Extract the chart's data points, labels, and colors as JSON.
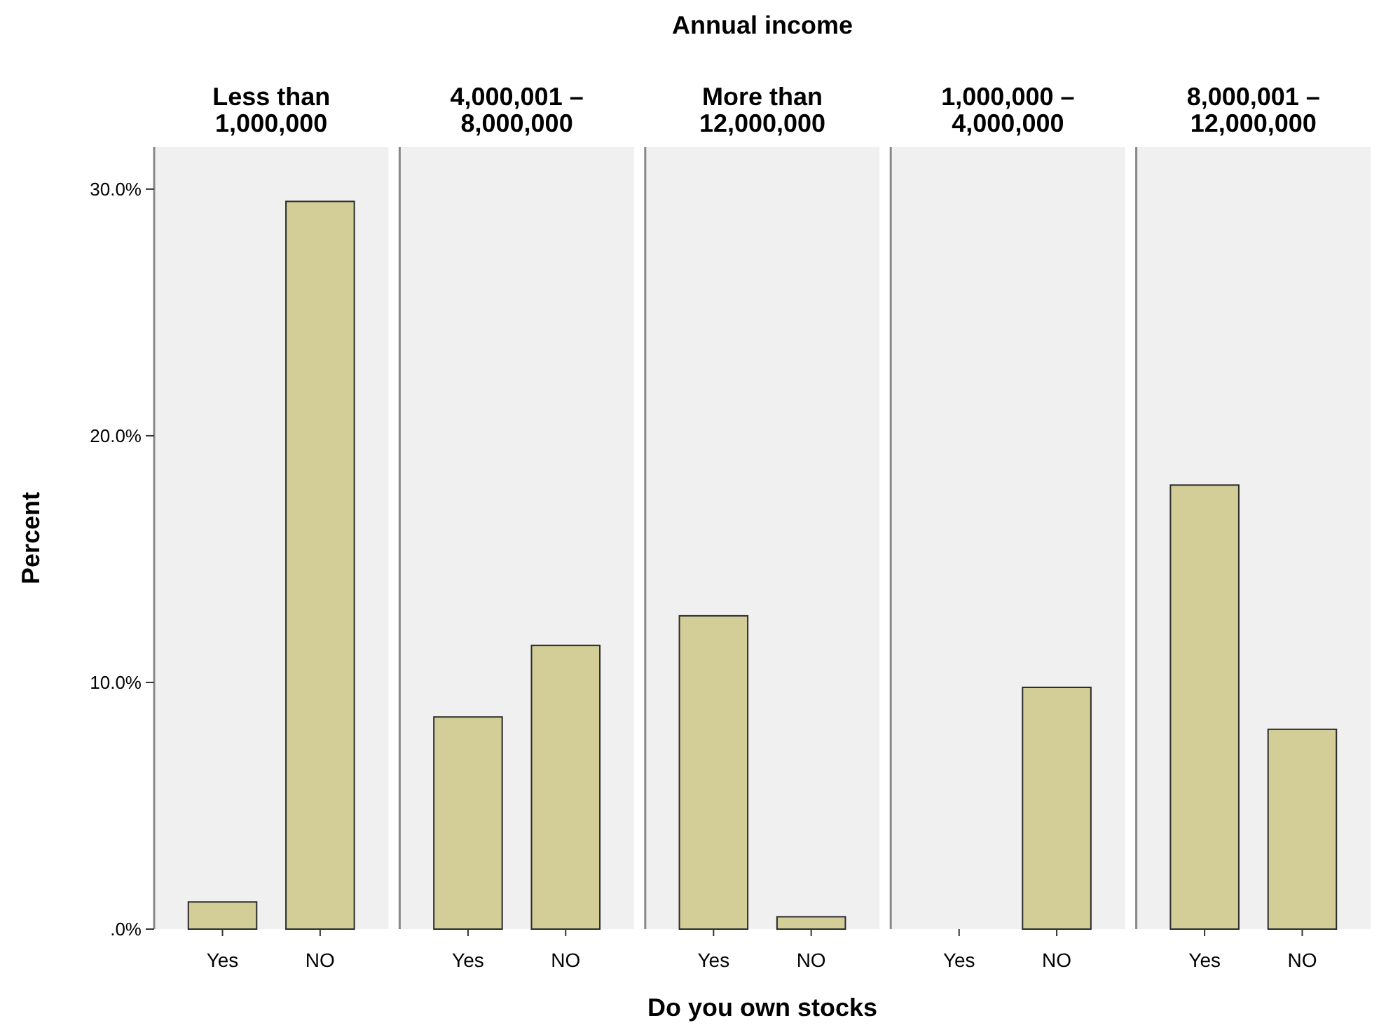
{
  "chart_data": [
    {
      "type": "bar",
      "title": "Less than 1,000,000",
      "ylabel": "Percent",
      "categories": [
        "Yes",
        "NO"
      ],
      "values": [
        1.1,
        29.5
      ],
      "color": "#d3ce97",
      "ylim": [
        0,
        31.7
      ],
      "yticks": [
        {
          "value": 0,
          "label": ".0%"
        },
        {
          "value": 10,
          "label": "10.0%"
        },
        {
          "value": 20,
          "label": "20.0%"
        },
        {
          "value": 30,
          "label": "30.0%"
        }
      ],
      "grid": false
    },
    {
      "type": "bar",
      "title": "4,000,001 – 8,000,000",
      "categories": [
        "Yes",
        "NO"
      ],
      "values": [
        8.6,
        11.5
      ],
      "color": "#d3ce97",
      "ylim": [
        0,
        31.7
      ],
      "tick_labels": "x",
      "grid": false
    },
    {
      "type": "bar",
      "title": "More than 12,000,000",
      "xlabel": "Do you own stocks",
      "annotations": [
        "Annual income"
      ],
      "categories": [
        "Yes",
        "NO"
      ],
      "values": [
        12.7,
        0.5
      ],
      "color": "#d3ce97",
      "ylim": [
        0,
        31.7
      ],
      "tick_labels": "x",
      "grid": false
    },
    {
      "type": "bar",
      "title": "1,000,000 – 4,000,000",
      "categories": [
        "Yes",
        "NO"
      ],
      "values": [
        0,
        9.8
      ],
      "color": "#d3ce97",
      "ylim": [
        0,
        31.7
      ],
      "tick_labels": "x",
      "grid": false
    },
    {
      "type": "bar",
      "title": "8,000,001 – 12,000,000",
      "categories": [
        "Yes",
        "NO"
      ],
      "values": [
        18.0,
        8.1
      ],
      "color": "#d3ce97",
      "ylim": [
        0,
        31.7
      ],
      "tick_labels": "x",
      "grid": false
    }
  ]
}
